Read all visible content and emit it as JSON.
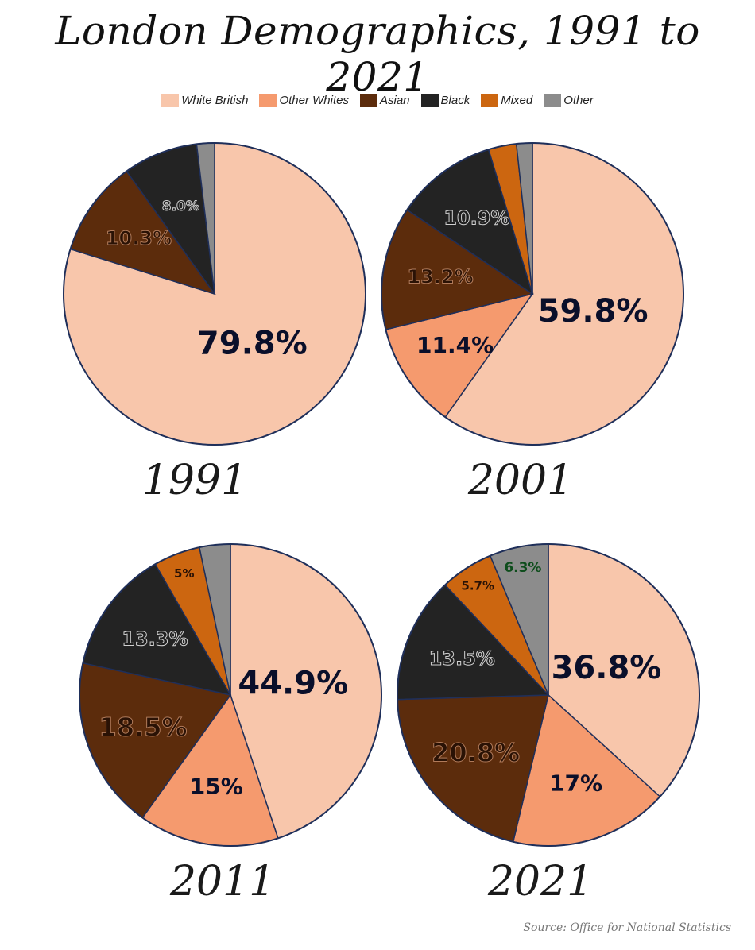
{
  "title": "London Demographics, 1991 to 2021",
  "source": "Source: Office for National Statistics",
  "legend": [
    {
      "name": "White British",
      "color": "#f8c6ab"
    },
    {
      "name": "Other Whites",
      "color": "#f59a6e"
    },
    {
      "name": "Asian",
      "color": "#5c2c0c"
    },
    {
      "name": "Black",
      "color": "#232323"
    },
    {
      "name": "Mixed",
      "color": "#cc6610"
    },
    {
      "name": "Other",
      "color": "#8c8c8c"
    }
  ],
  "chart_data": [
    {
      "type": "pie",
      "title": "1991",
      "slices": [
        {
          "name": "White British",
          "value": 79.8,
          "label": "79.8%"
        },
        {
          "name": "Asian",
          "value": 10.3,
          "label": "10.3%"
        },
        {
          "name": "Black",
          "value": 8.0,
          "label": "8.0%"
        },
        {
          "name": "Other",
          "value": 1.9,
          "label": ""
        }
      ]
    },
    {
      "type": "pie",
      "title": "2001",
      "slices": [
        {
          "name": "White British",
          "value": 59.8,
          "label": "59.8%"
        },
        {
          "name": "Other Whites",
          "value": 11.4,
          "label": "11.4%"
        },
        {
          "name": "Asian",
          "value": 13.2,
          "label": "13.2%"
        },
        {
          "name": "Black",
          "value": 10.9,
          "label": "10.9%"
        },
        {
          "name": "Mixed",
          "value": 3.0,
          "label": ""
        },
        {
          "name": "Other",
          "value": 1.7,
          "label": ""
        }
      ]
    },
    {
      "type": "pie",
      "title": "2011",
      "slices": [
        {
          "name": "White British",
          "value": 44.9,
          "label": "44.9%"
        },
        {
          "name": "Other Whites",
          "value": 15,
          "label": "15%"
        },
        {
          "name": "Asian",
          "value": 18.5,
          "label": "18.5%"
        },
        {
          "name": "Black",
          "value": 13.3,
          "label": "13.3%"
        },
        {
          "name": "Mixed",
          "value": 5,
          "label": "5%"
        },
        {
          "name": "Other",
          "value": 3.3,
          "label": ""
        }
      ]
    },
    {
      "type": "pie",
      "title": "2021",
      "slices": [
        {
          "name": "White British",
          "value": 36.8,
          "label": "36.8%"
        },
        {
          "name": "Other Whites",
          "value": 17,
          "label": "17%"
        },
        {
          "name": "Asian",
          "value": 20.8,
          "label": "20.8%"
        },
        {
          "name": "Black",
          "value": 13.5,
          "label": "13.5%"
        },
        {
          "name": "Mixed",
          "value": 5.7,
          "label": "5.7%"
        },
        {
          "name": "Other",
          "value": 6.3,
          "label": "6.3%"
        }
      ]
    }
  ]
}
